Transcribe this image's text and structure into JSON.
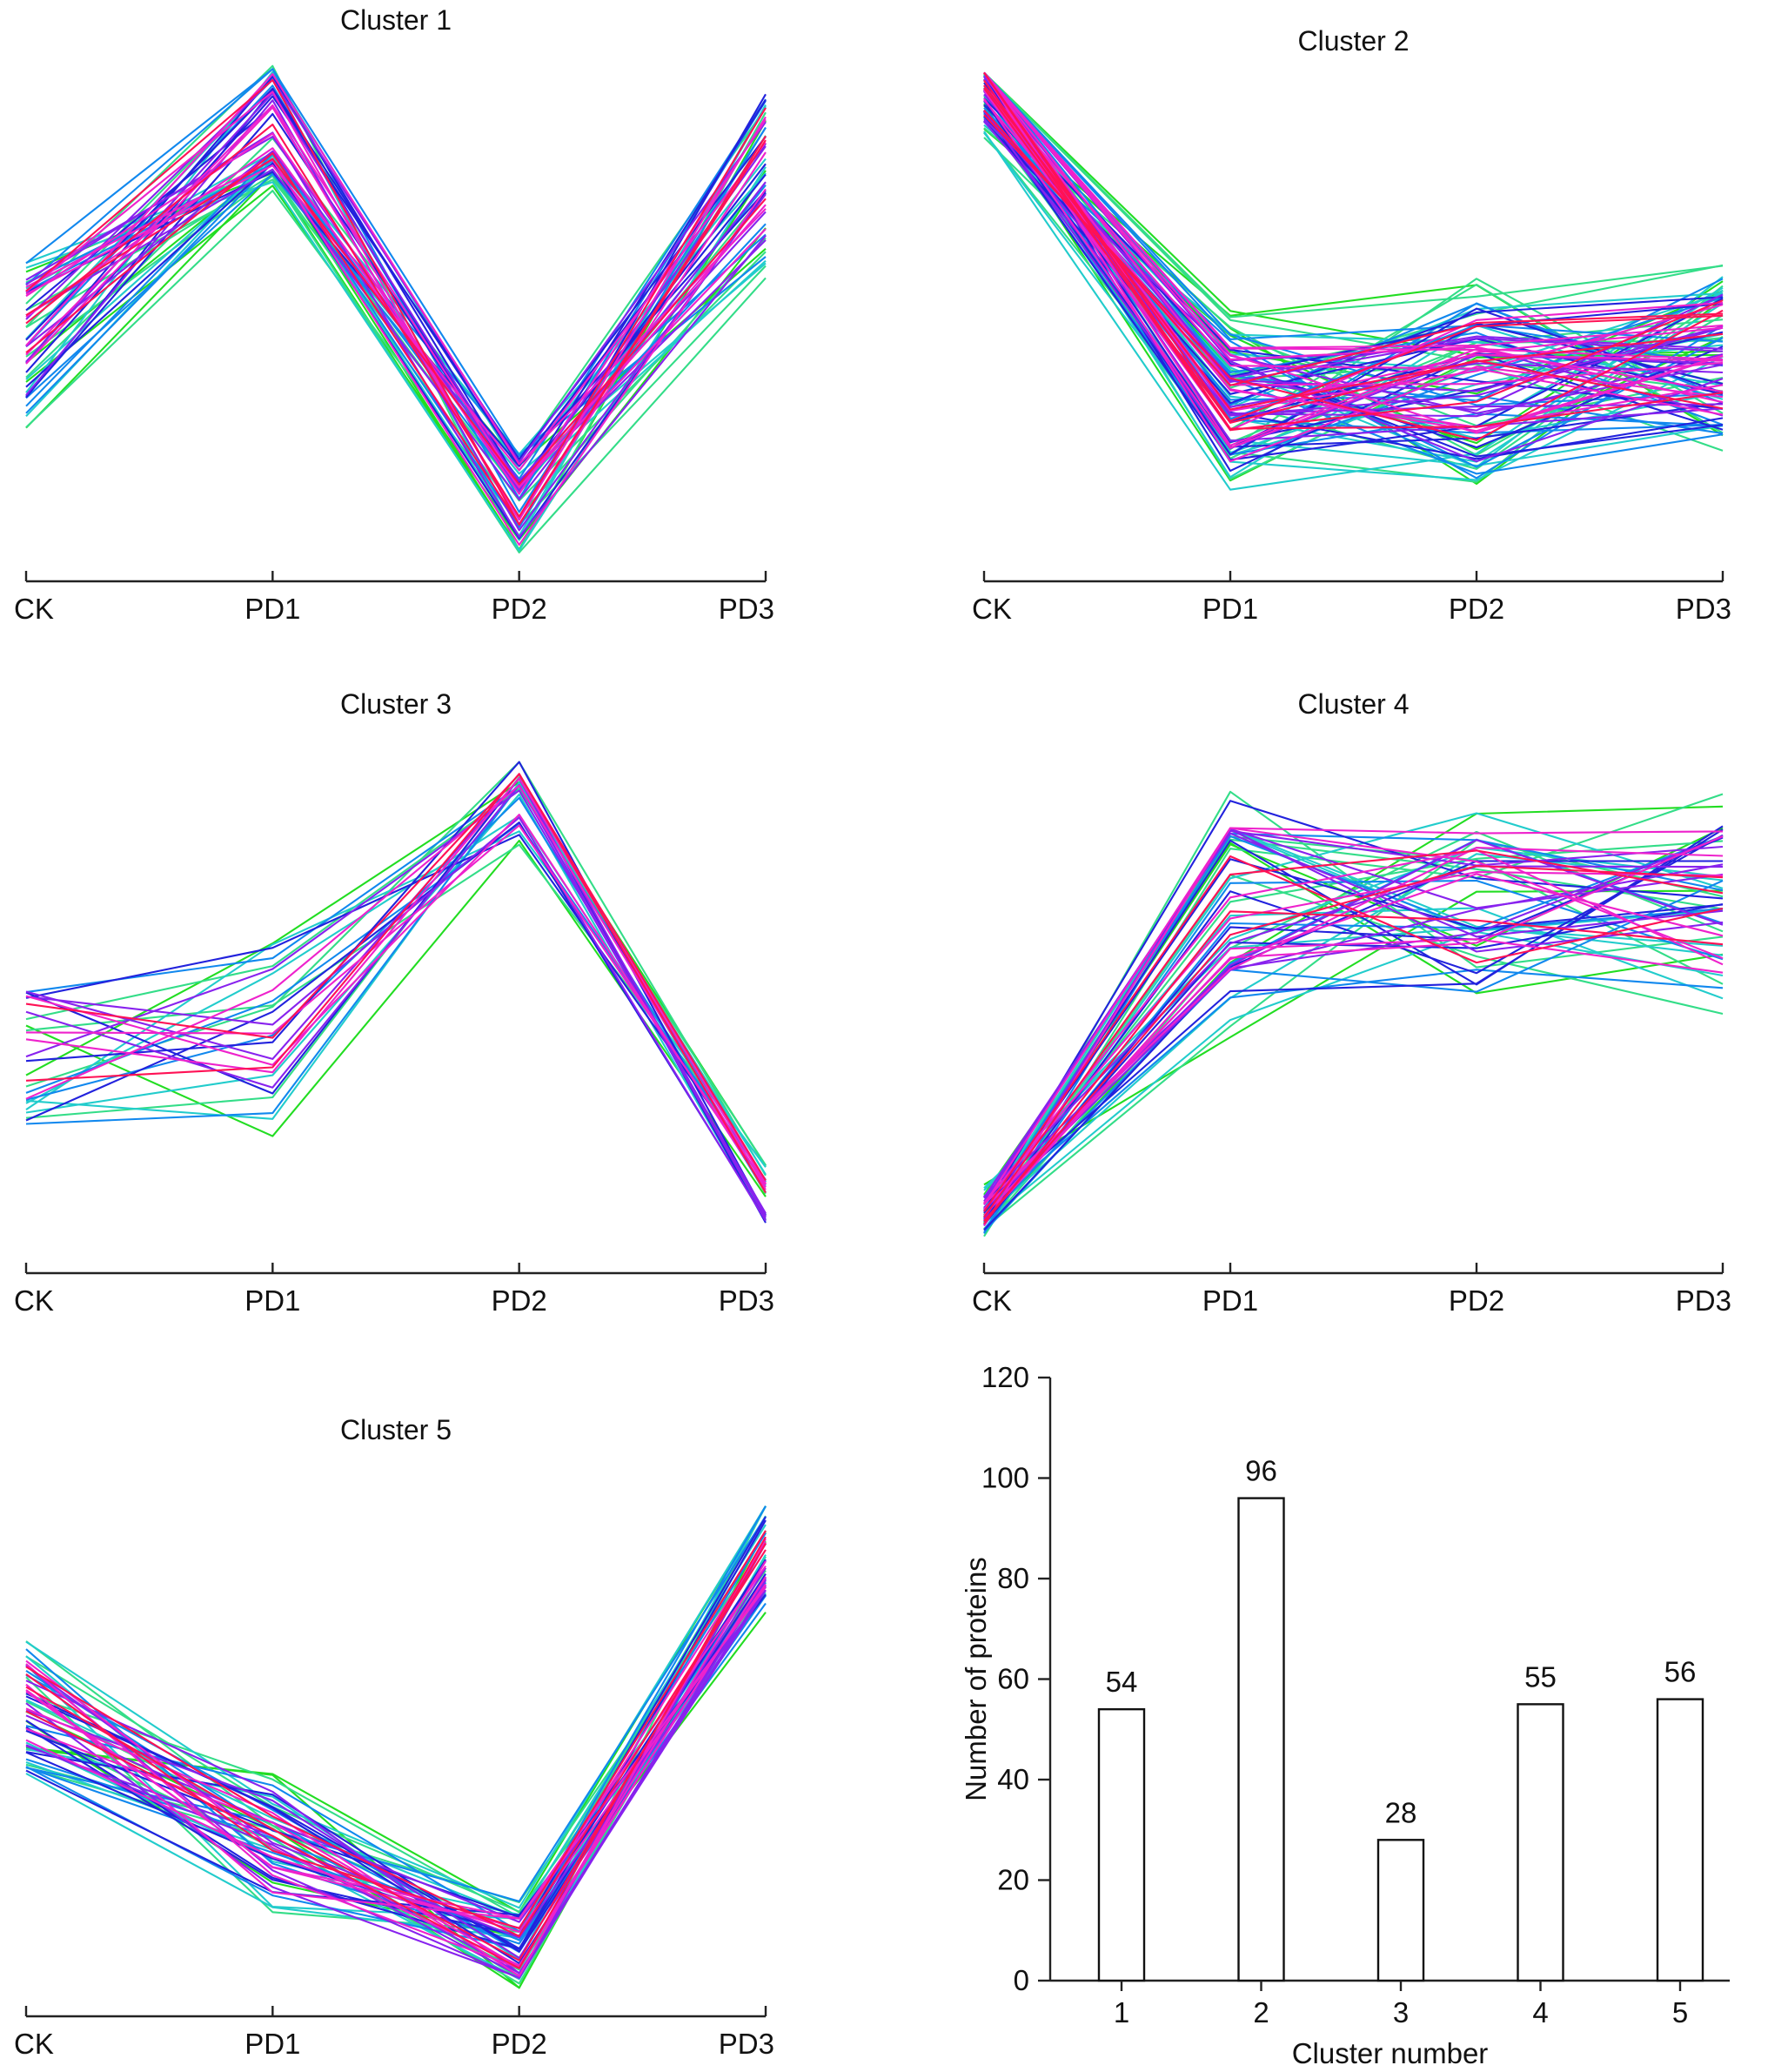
{
  "chart_data": [
    {
      "type": "line",
      "title": "Cluster 1",
      "x": [
        "CK",
        "PD1",
        "PD2",
        "PD3"
      ],
      "n_profiles": 54,
      "profile_shape": [
        0.45,
        0.88,
        0.12,
        0.78
      ],
      "profile_spread": [
        0.38,
        0.3,
        0.26,
        0.46
      ],
      "series": []
    },
    {
      "type": "line",
      "title": "Cluster 2",
      "x": [
        "CK",
        "PD1",
        "PD2",
        "PD3"
      ],
      "n_profiles": 96,
      "profile_shape": [
        0.96,
        0.3,
        0.34,
        0.4
      ],
      "profile_spread": [
        0.22,
        0.4,
        0.48,
        0.42
      ],
      "series": []
    },
    {
      "type": "line",
      "title": "Cluster 3",
      "x": [
        "CK",
        "PD1",
        "PD2",
        "PD3"
      ],
      "n_profiles": 28,
      "profile_shape": [
        0.4,
        0.45,
        0.92,
        0.1
      ],
      "profile_spread": [
        0.38,
        0.5,
        0.22,
        0.15
      ],
      "series": []
    },
    {
      "type": "line",
      "title": "Cluster 4",
      "x": [
        "CK",
        "PD1",
        "PD2",
        "PD3"
      ],
      "n_profiles": 55,
      "profile_shape": [
        0.08,
        0.72,
        0.72,
        0.72
      ],
      "profile_spread": [
        0.12,
        0.56,
        0.5,
        0.52
      ],
      "series": []
    },
    {
      "type": "line",
      "title": "Cluster 5",
      "x": [
        "CK",
        "PD1",
        "PD2",
        "PD3"
      ],
      "n_profiles": 56,
      "profile_shape": [
        0.58,
        0.3,
        0.1,
        0.9
      ],
      "profile_spread": [
        0.34,
        0.32,
        0.22,
        0.26
      ],
      "series": []
    },
    {
      "type": "bar",
      "title": "",
      "xlabel": "Cluster number",
      "ylabel": "Number of proteins",
      "categories": [
        "1",
        "2",
        "3",
        "4",
        "5"
      ],
      "values": [
        54,
        96,
        28,
        55,
        56
      ],
      "ylim": [
        0,
        120
      ],
      "yticks": [
        0,
        20,
        40,
        60,
        80,
        100,
        120
      ]
    }
  ],
  "colors": {
    "palette": [
      "#22dd22",
      "#33dd88",
      "#22cccc",
      "#1188ee",
      "#2222dd",
      "#8822ee",
      "#ee22cc",
      "#ff1155"
    ],
    "bar_fill": "#ffffff",
    "axis": "#222222"
  }
}
